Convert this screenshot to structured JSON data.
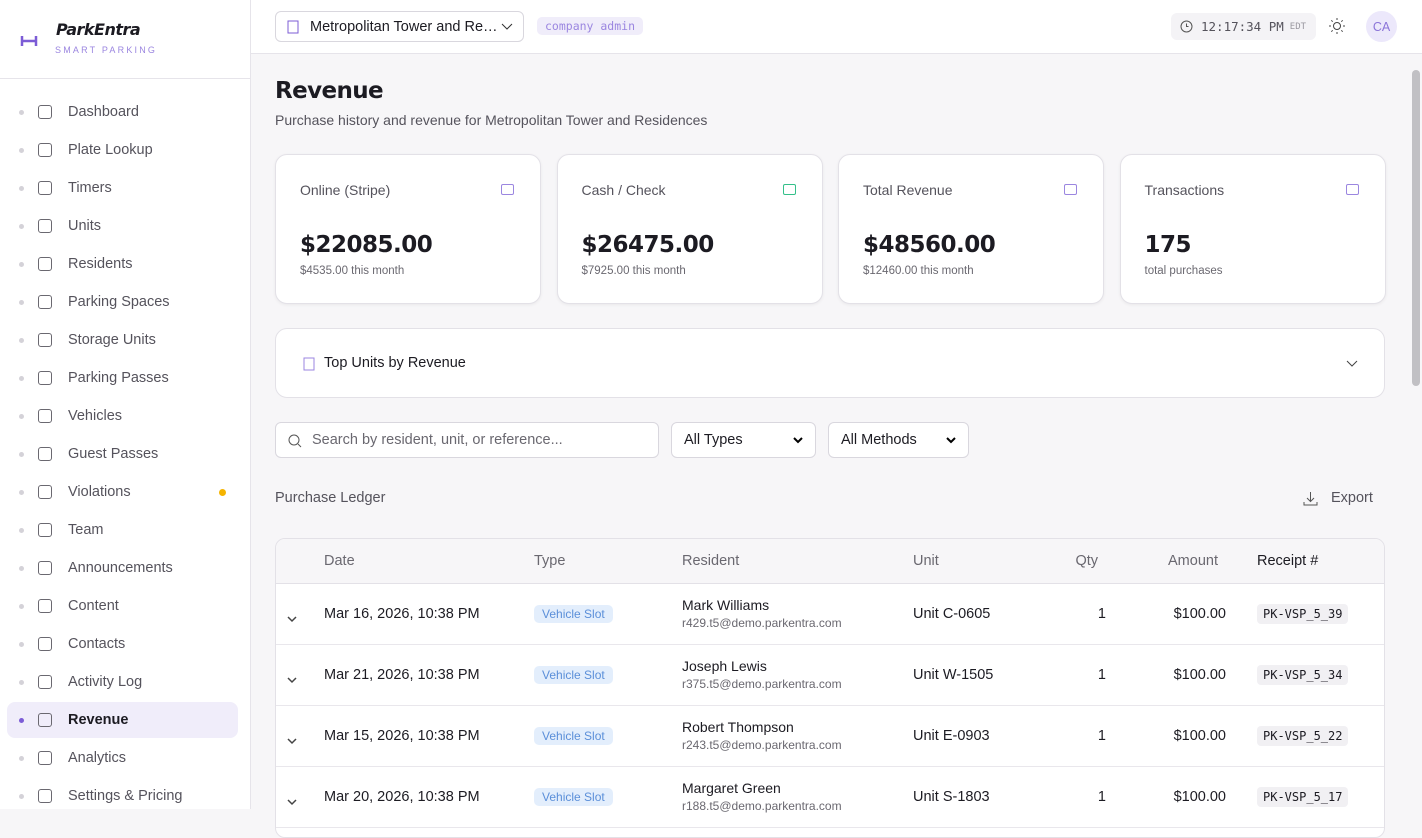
{
  "brand": {
    "name": "ParkEntra",
    "tagline": "SMART PARKING"
  },
  "nav": [
    "Dashboard",
    "Plate Lookup",
    "Timers",
    "Units",
    "Residents",
    "Parking Spaces",
    "Storage Units",
    "Parking Passes",
    "Vehicles",
    "Guest Passes",
    "Violations",
    "Team",
    "Announcements",
    "Content",
    "Contacts",
    "Activity Log",
    "Revenue",
    "Analytics",
    "Settings & Pricing"
  ],
  "topbar": {
    "property": "Metropolitan Tower and Residences",
    "role": "company admin",
    "time": "12:17:34 PM",
    "timezone": "EDT",
    "avatar": "CA"
  },
  "header": {
    "title": "Revenue",
    "subtitle": "Purchase history and revenue for Metropolitan Tower and Residences"
  },
  "stats": [
    {
      "label": "Online (Stripe)",
      "value": "$22085.00",
      "sub": "$4535.00 this month"
    },
    {
      "label": "Cash / Check",
      "value": "$26475.00",
      "sub": "$7925.00 this month"
    },
    {
      "label": "Total Revenue",
      "value": "$48560.00",
      "sub": "$12460.00 this month"
    },
    {
      "label": "Transactions",
      "value": "175",
      "sub": "total purchases"
    }
  ],
  "top_units": {
    "title": "Top Units by Revenue"
  },
  "filters": {
    "search": "Search by resident, unit, or reference...",
    "type": "All Types",
    "method": "All Methods"
  },
  "ledger": {
    "title": "Purchase Ledger",
    "export": "Export",
    "columns": [
      "Date",
      "Type",
      "Resident",
      "Unit",
      "Qty",
      "Amount",
      "Receipt #"
    ],
    "rows": [
      {
        "date": "Mar 16, 2026, 10:38 PM",
        "type": "Vehicle Slot",
        "name": "Mark Williams",
        "email": "r429.t5@demo.parkentra.com",
        "unit": "Unit C-0605",
        "qty": "1",
        "amount": "$100.00",
        "receipt": "PK-VSP_5_39"
      },
      {
        "date": "Mar 21, 2026, 10:38 PM",
        "type": "Vehicle Slot",
        "name": "Joseph Lewis",
        "email": "r375.t5@demo.parkentra.com",
        "unit": "Unit W-1505",
        "qty": "1",
        "amount": "$100.00",
        "receipt": "PK-VSP_5_34"
      },
      {
        "date": "Mar 15, 2026, 10:38 PM",
        "type": "Vehicle Slot",
        "name": "Robert Thompson",
        "email": "r243.t5@demo.parkentra.com",
        "unit": "Unit E-0903",
        "qty": "1",
        "amount": "$100.00",
        "receipt": "PK-VSP_5_22"
      },
      {
        "date": "Mar 20, 2026, 10:38 PM",
        "type": "Vehicle Slot",
        "name": "Margaret Green",
        "email": "r188.t5@demo.parkentra.com",
        "unit": "Unit S-1803",
        "qty": "1",
        "amount": "$100.00",
        "receipt": "PK-VSP_5_17"
      }
    ]
  }
}
